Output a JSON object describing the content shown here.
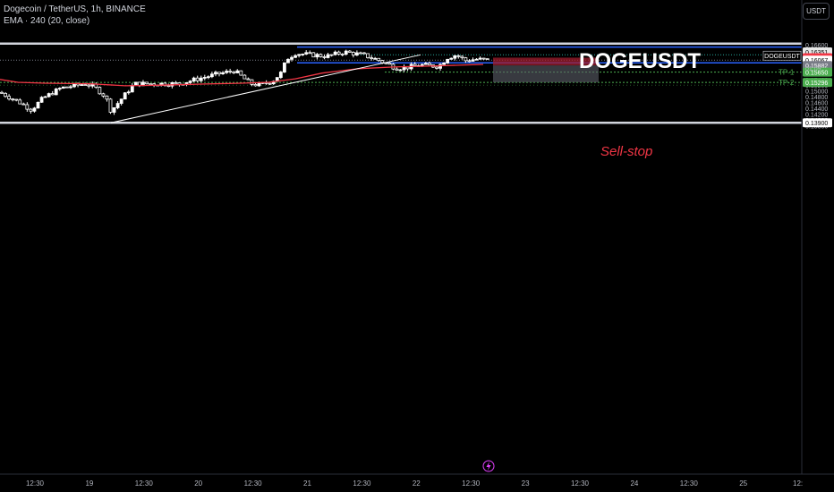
{
  "header": {
    "symbol_line": "Dogecoin / TetherUS, 1h, BINANCE",
    "indicator_line": "EMA · 240 (20, close)"
  },
  "currency_button": "USDT",
  "annotations": {
    "ticker_title": "DOGEUSDT",
    "sell_stop": "Sell-stop",
    "tp1": "TP-1",
    "tp2": "TP-2",
    "countdown": "01:09",
    "symbol_tag": "DOGEUSDT"
  },
  "chart_data": {
    "type": "candlestick",
    "x_tick_labels": [
      "12:30",
      "19",
      "12:30",
      "20",
      "12:30",
      "21",
      "12:30",
      "22",
      "12:30",
      "23",
      "12:30",
      "24",
      "12:30",
      "25",
      "12:"
    ],
    "y_tick_labels": [
      "0.16600",
      "0.16400",
      "0.16200",
      "0.16000",
      "0.15800",
      "0.15600",
      "0.15400",
      "0.15200",
      "0.15000",
      "0.14800",
      "0.14600",
      "0.14400",
      "0.14200",
      "0.14000",
      "0.13800"
    ],
    "ylim": [
      0.137,
      0.168
    ],
    "price_labels": [
      {
        "text": "0.16351",
        "value": 0.16351,
        "color": "#e8e8e8",
        "text_color": "#000000"
      },
      {
        "text": "0.16153",
        "value": 0.16153,
        "color": "#f23645",
        "text_color": "#ffffff"
      },
      {
        "text": "0.16067",
        "value": 0.16067,
        "color": "#ffffff",
        "text_color": "#000000"
      },
      {
        "text": "0.15882",
        "value": 0.15882,
        "color": "#787b86",
        "text_color": "#ffffff"
      },
      {
        "text": "0.15650",
        "value": 0.1565,
        "color": "#4caf50",
        "text_color": "#ffffff"
      },
      {
        "text": "0.15296",
        "value": 0.15296,
        "color": "#4caf50",
        "text_color": "#ffffff"
      },
      {
        "text": "0.13900",
        "value": 0.139,
        "color": "#ffffff",
        "text_color": "#000000"
      }
    ],
    "levels": {
      "top_line": 0.1664,
      "bottom_line": 0.139,
      "resistance_upper": 0.1652,
      "resistance_lower": 0.15975,
      "current_price": 0.16067,
      "tp1": 0.1565,
      "tp2": 0.15296,
      "dotted_high": 0.1625
    },
    "position": {
      "entry": 0.15882,
      "stop": 0.16153,
      "target": 0.15296
    },
    "colors": {
      "bull": "#ffffff",
      "bear": "#ffffff",
      "ema": "#f23645",
      "level_line": "#2962ff",
      "trend_line": "#ffffff",
      "tp_line": "#4caf50",
      "stop_zone": "#a01e2e",
      "target_zone": "#5d606b"
    }
  }
}
